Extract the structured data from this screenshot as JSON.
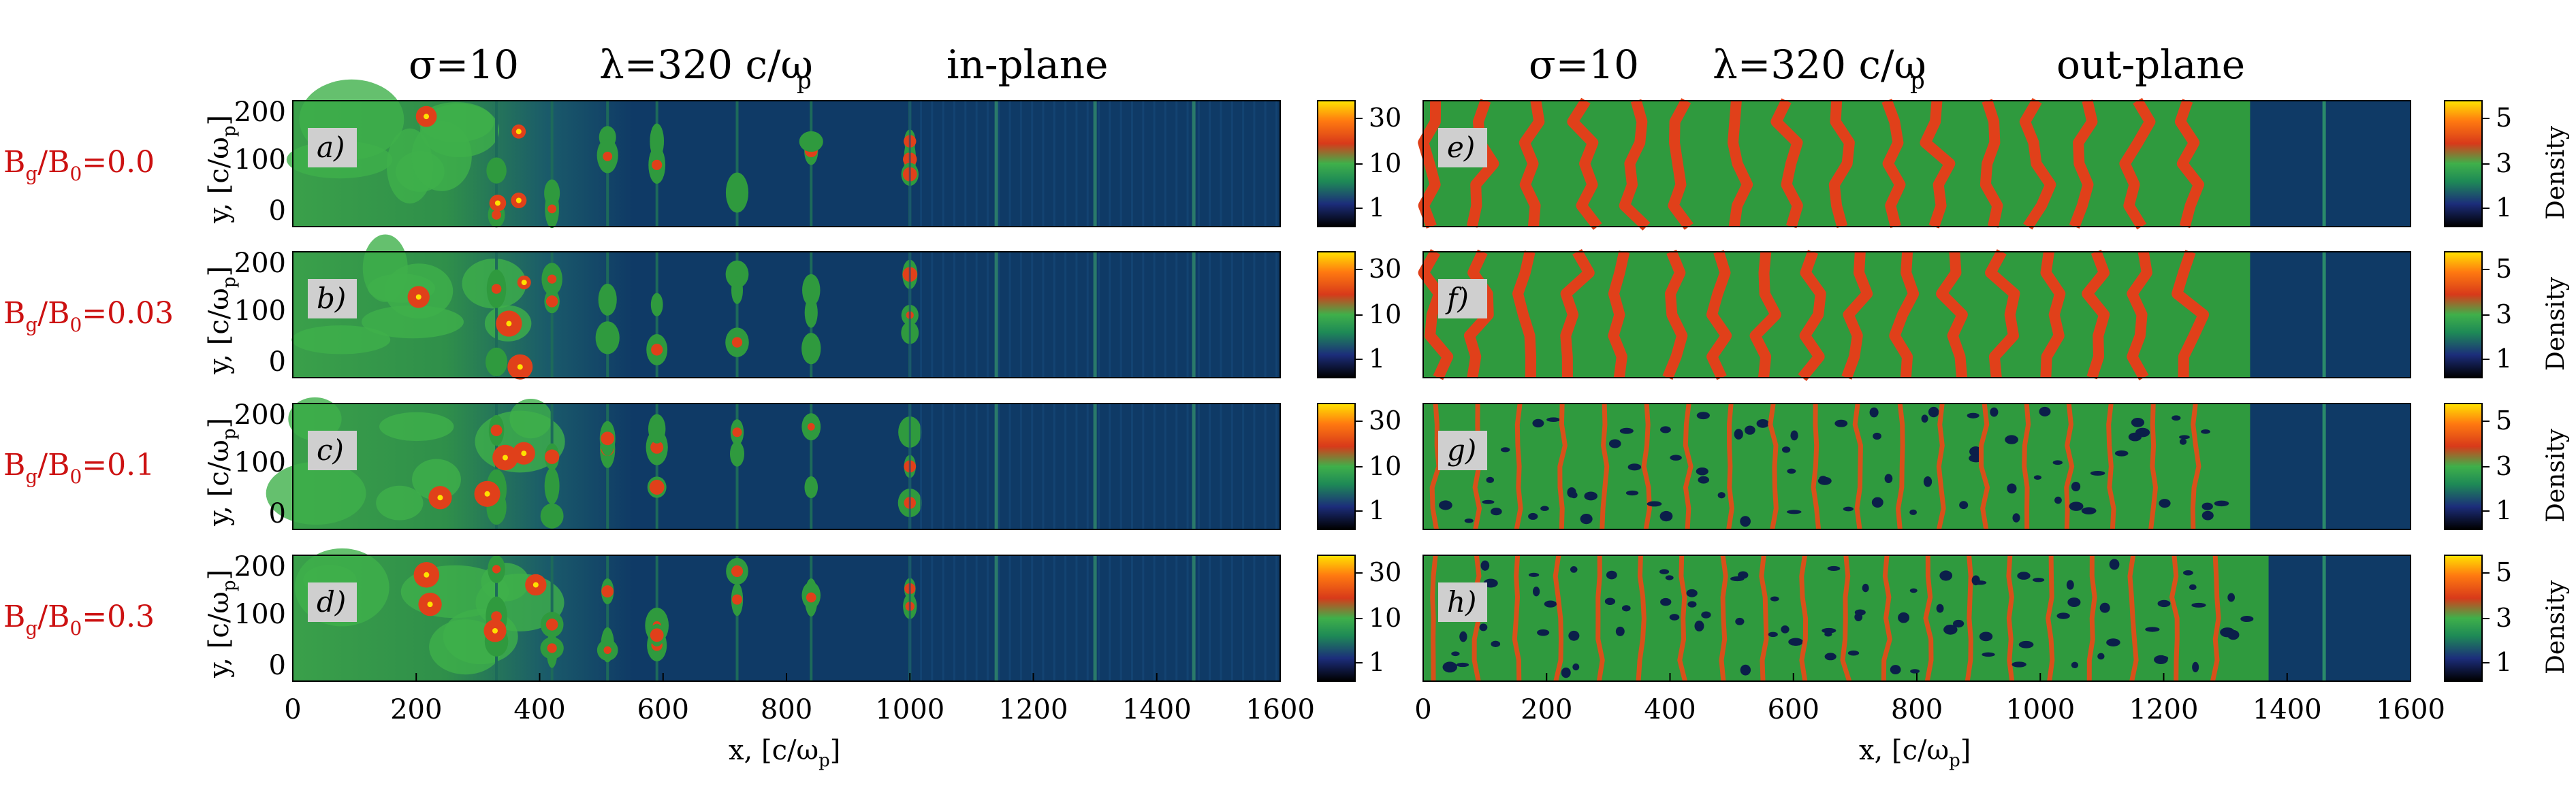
{
  "figure": {
    "left_title": {
      "sigma": "σ=10",
      "lambda": "λ=320 c/ω",
      "lambda_sub": "p",
      "plane": "in-plane"
    },
    "right_title": {
      "sigma": "σ=10",
      "lambda": "λ=320 c/ω",
      "lambda_sub": "p",
      "plane": "out-plane"
    },
    "row_labels": [
      {
        "main": "B",
        "sub1": "g",
        "mid": "/B",
        "sub2": "0",
        "value": "=0.0"
      },
      {
        "main": "B",
        "sub1": "g",
        "mid": "/B",
        "sub2": "0",
        "value": "=0.03"
      },
      {
        "main": "B",
        "sub1": "g",
        "mid": "/B",
        "sub2": "0",
        "value": "=0.1"
      },
      {
        "main": "B",
        "sub1": "g",
        "mid": "/B",
        "sub2": "0",
        "value": "=0.3"
      }
    ],
    "row_label_color": "#cc1111",
    "panel_tags_left": [
      "a)",
      "b)",
      "c)",
      "d)"
    ],
    "panel_tags_right": [
      "e)",
      "f)",
      "g)",
      "h)"
    ],
    "ylabel": {
      "text": "y, [c/ω",
      "sub": "p",
      "close": "]"
    },
    "xlabel": {
      "text": "x, [c/ω",
      "sub": "p",
      "close": "]"
    },
    "y_ticks": [
      "200",
      "100",
      "0"
    ],
    "x_ticks": [
      "0",
      "200",
      "400",
      "600",
      "800",
      "1000",
      "1200",
      "1400",
      "1600"
    ],
    "colorbar_left_ticks": [
      "30",
      "10",
      "1"
    ],
    "colorbar_right_ticks": [
      "5",
      "3",
      "1"
    ],
    "colorbar_right_title": "Density",
    "colors": {
      "background_blue": "#0f3a66",
      "green": "#2f9a3e",
      "red": "#e0401a",
      "yellow": "#ffe000"
    }
  }
}
